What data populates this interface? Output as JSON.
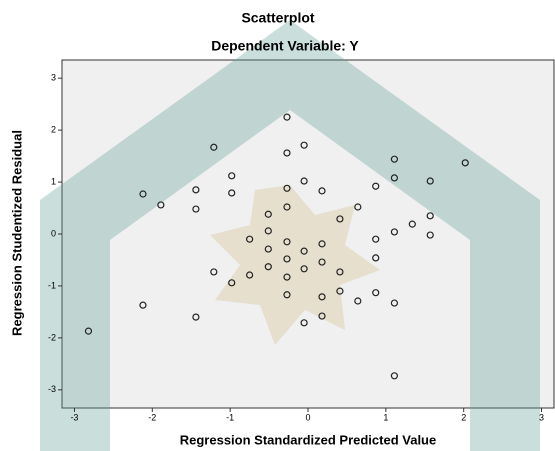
{
  "chart_data": {
    "type": "scatter",
    "title": "Scatterplot",
    "subtitle": "Dependent Variable: Y",
    "x_label": "Regression Standardized Predicted Value",
    "y_label": "Regression Studentized Residual",
    "xlim": [
      -3.16,
      3.16
    ],
    "ylim": [
      -3.35,
      3.35
    ],
    "xticks": [
      -3,
      -2,
      -1,
      0,
      1,
      2,
      3
    ],
    "yticks": [
      -3,
      -2,
      -1,
      0,
      1,
      2,
      3
    ],
    "color": "#222222",
    "x": [
      -0.27,
      -1.21,
      -0.27,
      -0.05,
      1.11,
      2.02,
      -0.98,
      1.11,
      1.57,
      -0.05,
      -2.12,
      -1.44,
      -0.98,
      -0.27,
      0.18,
      0.87,
      -1.89,
      -1.44,
      -0.27,
      -0.51,
      0.64,
      0.41,
      1.57,
      1.34,
      1.11,
      -0.51,
      1.57,
      -0.75,
      0.87,
      -0.27,
      0.18,
      -0.51,
      -0.05,
      -0.27,
      0.18,
      0.87,
      -0.51,
      -0.05,
      -1.21,
      -0.75,
      0.41,
      -0.27,
      -0.98,
      0.41,
      0.87,
      -0.27,
      0.18,
      0.64,
      -2.12,
      1.11,
      -1.44,
      0.18,
      -0.05,
      -2.82,
      1.11
    ],
    "values": [
      2.25,
      1.67,
      1.56,
      1.71,
      1.44,
      1.37,
      1.12,
      1.08,
      1.02,
      1.02,
      0.77,
      0.85,
      0.79,
      0.88,
      0.83,
      0.92,
      0.56,
      0.48,
      0.52,
      0.38,
      0.52,
      0.29,
      0.35,
      0.19,
      0.04,
      0.06,
      -0.02,
      -0.1,
      -0.1,
      -0.15,
      -0.19,
      -0.29,
      -0.33,
      -0.48,
      -0.54,
      -0.46,
      -0.63,
      -0.67,
      -0.73,
      -0.79,
      -0.73,
      -0.83,
      -0.94,
      -1.1,
      -1.13,
      -1.17,
      -1.21,
      -1.29,
      -1.37,
      -1.33,
      -1.6,
      -1.58,
      -1.71,
      -1.87,
      -2.73
    ]
  }
}
